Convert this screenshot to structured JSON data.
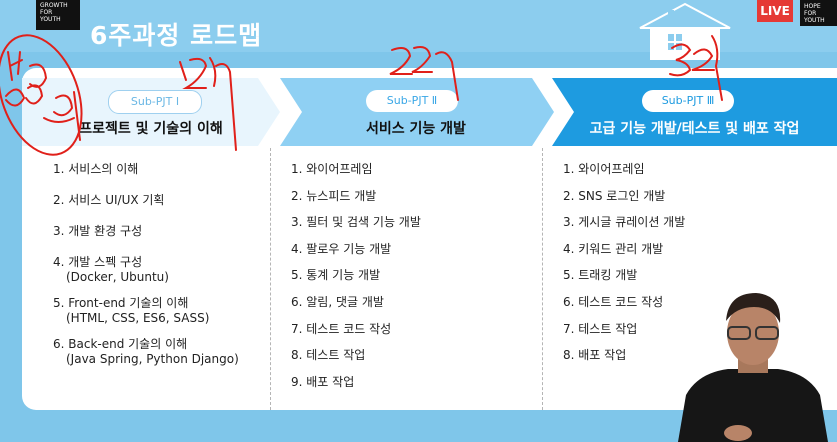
{
  "header": {
    "logo_lines": [
      "GROWTH",
      "FOR",
      "YOUTH"
    ],
    "title": "6주과정 로드맵",
    "live_badge": "LIVE",
    "logo2_lines": [
      "HOPE",
      "FOR",
      "YOUTH"
    ]
  },
  "phases": [
    {
      "tag": "Sub-PJT Ⅰ",
      "heading": "프로젝트 및 기술의 이해",
      "items": [
        {
          "main": "1. 서비스의 이해"
        },
        {
          "main": "2. 서비스 UI/UX 기획"
        },
        {
          "main": "3. 개발 환경 구성"
        },
        {
          "main": "4. 개발 스펙 구성",
          "sub": "(Docker, Ubuntu)"
        },
        {
          "main": "5. Front-end 기술의 이해",
          "sub": "(HTML, CSS, ES6, SASS)"
        },
        {
          "main": "6. Back-end 기술의 이해",
          "sub": "(Java Spring, Python Django)"
        }
      ]
    },
    {
      "tag": "Sub-PJT Ⅱ",
      "heading": "서비스 기능 개발",
      "items": [
        {
          "main": "1. 와이어프레임"
        },
        {
          "main": "2. 뉴스피드 개발"
        },
        {
          "main": "3. 필터 및 검색 기능 개발"
        },
        {
          "main": "4. 팔로우 기능 개발"
        },
        {
          "main": "5. 통계 기능 개발"
        },
        {
          "main": "6. 알림, 댓글 개발"
        },
        {
          "main": "7. 테스트 코드 작성"
        },
        {
          "main": "8. 테스트 작업"
        },
        {
          "main": "9. 배포 작업"
        }
      ]
    },
    {
      "tag": "Sub-PJT Ⅲ",
      "heading": "고급 기능 개발/테스트 및 배포 작업",
      "items": [
        {
          "main": "1. 와이어프레임"
        },
        {
          "main": "2. SNS 로그인 개발"
        },
        {
          "main": "3. 게시글 큐레이션 개발"
        },
        {
          "main": "4. 키워드 관리 개발"
        },
        {
          "main": "5. 트래킹 개발"
        },
        {
          "main": "6. 테스트 코드 작성"
        },
        {
          "main": "7. 테스트 작업"
        },
        {
          "main": "8. 배포 작업"
        }
      ]
    }
  ],
  "colors": {
    "background": "#7fc6ea",
    "phase1_banner": "#e8f5fd",
    "phase2_banner": "#8fd0f3",
    "phase3_banner": "#1e9be0",
    "annotation": "#e0201a",
    "live": "#e53935"
  }
}
